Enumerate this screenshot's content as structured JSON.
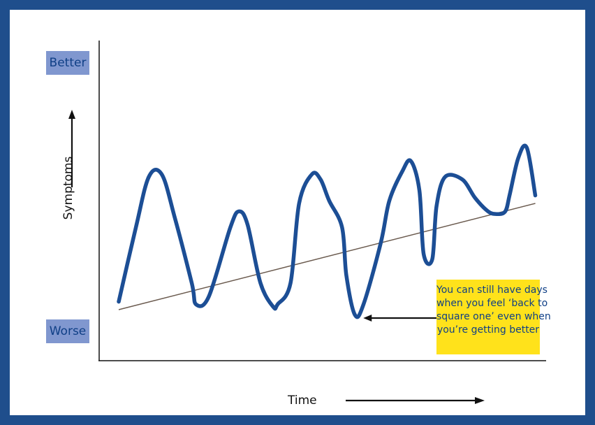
{
  "chart_data": {
    "type": "line",
    "title": "",
    "xlabel": "Time",
    "ylabel": "Symptoms",
    "y_scale_labels": {
      "top": "Better",
      "bottom": "Worse"
    },
    "xlim": [
      0,
      100
    ],
    "ylim": [
      0,
      100
    ],
    "grid": false,
    "legend": "none",
    "series": [
      {
        "role": "symptoms",
        "color": "#1c4e95",
        "x": [
          0,
          4,
          7,
          10,
          13,
          17,
          18,
          21,
          26,
          28,
          30,
          33,
          36,
          37,
          40,
          42,
          45,
          47,
          49,
          52,
          53,
          55,
          57,
          61,
          63,
          66,
          68,
          70,
          71,
          73,
          74,
          76,
          80,
          83,
          86,
          88,
          90,
          91,
          93,
          95,
          97
        ],
        "y": [
          18,
          46,
          65,
          66,
          50,
          25,
          17,
          20,
          46,
          52,
          47,
          25,
          16,
          17,
          25,
          55,
          66,
          64,
          56,
          46,
          28,
          13,
          17,
          40,
          56,
          67,
          71,
          60,
          36,
          34,
          54,
          65,
          64,
          57,
          52,
          51,
          52,
          58,
          72,
          76,
          58
        ]
      },
      {
        "role": "trend",
        "color": "#6a5a4e",
        "x": [
          0,
          97
        ],
        "y": [
          15,
          55
        ]
      }
    ],
    "annotations": [
      {
        "lines": [
          "You can still have days",
          "when you feel ‘back to",
          "square one’ even when",
          "you’re getting better"
        ],
        "points_to": {
          "x": 55,
          "y": 13
        },
        "background": "#ffe21b",
        "text_color": "#0f3f86"
      }
    ]
  },
  "colors": {
    "frame": "#1f4e8c",
    "level_box_bg": "#8097cf",
    "level_box_text": "#0f3f86"
  }
}
